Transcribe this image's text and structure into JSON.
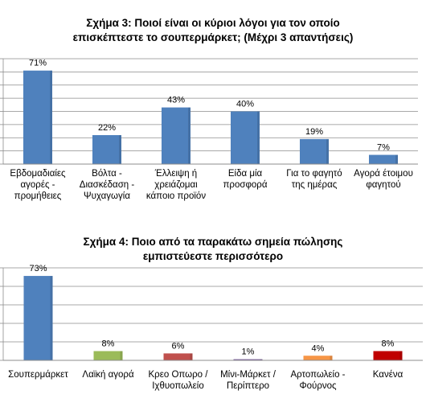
{
  "chart_data": [
    {
      "type": "bar",
      "title": "Σχήμα 3: Ποιοί είναι οι κύριοι λόγοι για τον οποίο επισκέπτεστε το σουπερμάρκετ; (Μέχρι 3 απαντήσεις)",
      "categories": [
        "Εβδομαδιαίες αγορές - προμήθειες",
        "Βόλτα - Διασκέδαση - Ψυχαγωγία",
        "Έλλειψη ή χρειάζομαι κάποιο προϊόν",
        "Είδα μία προσφορά",
        "Για το φαγητό της ημέρας",
        "Αγορά έτοιμου φαγητού"
      ],
      "values": [
        71,
        22,
        43,
        40,
        19,
        7
      ],
      "value_labels": [
        "71%",
        "22%",
        "43%",
        "40%",
        "19%",
        "7%"
      ],
      "bar_colors": [
        "#4f81bd",
        "#4f81bd",
        "#4f81bd",
        "#4f81bd",
        "#4f81bd",
        "#4f81bd"
      ],
      "ylim": [
        0,
        80
      ],
      "grid": true
    },
    {
      "type": "bar",
      "title": "Σχήμα 4: Ποιο από τα παρακάτω σημεία πώλησης εμπιστεύεστε περισσότερο",
      "categories": [
        "Σουπερμάρκετ",
        "Λαϊκή αγορά",
        "Κρεο Οπωρο / Ιχθυοπωλείο",
        "Μίνι-Μάρκετ / Περίπτερο",
        "Αρτοπωλείο - Φούρνος",
        "Κανένα"
      ],
      "values": [
        73,
        8,
        6,
        1,
        4,
        8
      ],
      "value_labels": [
        "73%",
        "8%",
        "6%",
        "1%",
        "4%",
        "8%"
      ],
      "bar_colors": [
        "#4f81bd",
        "#9bbb59",
        "#c0504d",
        "#8064a2",
        "#f79646",
        "#c00000"
      ],
      "ylim": [
        0,
        80
      ],
      "grid": true
    }
  ]
}
